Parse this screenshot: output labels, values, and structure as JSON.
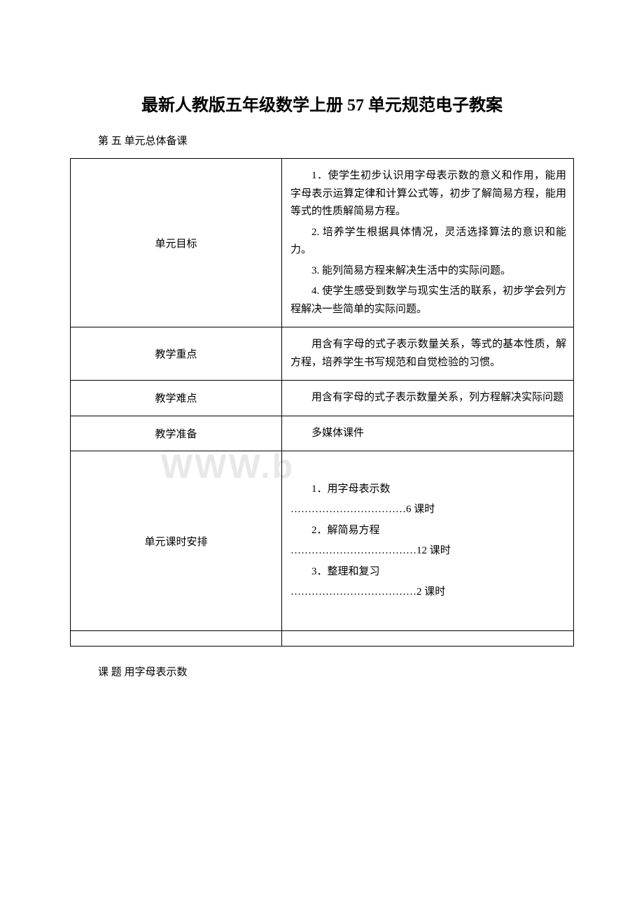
{
  "title": "最新人教版五年级数学上册 57 单元规范电子教案",
  "subtitle": "第 五  单元总体备课",
  "watermark": "WWW.b",
  "table": {
    "rows": [
      {
        "label": "单元目标",
        "items": [
          "1．使学生初步认识用字母表示数的意义和作用，能用字母表示运算定律和计算公式等，初步了解简易方程，能用等式的性质解简易方程。",
          "2. 培养学生根据具体情况，灵活选择算法的意识和能力。",
          "3. 能列简易方程来解决生活中的实际问题。",
          "4. 使学生感受到数学与现实生活的联系，初步学会列方程解决一些简单的实际问题。"
        ]
      },
      {
        "label": "教学重点",
        "content": "用含有字母的式子表示数量关系，等式的基本性质，解方程，培养学生书写规范和自觉检验的习惯。"
      },
      {
        "label": "教学难点",
        "content": "用含有字母的式子表示数量关系，列方程解决实际问题"
      },
      {
        "label": "教学准备",
        "content": "多媒体课件"
      },
      {
        "label": "单元课时安排",
        "schedule": [
          {
            "name": "1．用字母表示数",
            "dots": "……………………………",
            "hours": "6 课时"
          },
          {
            "name": "2．解简易方程",
            "dots": "………………………………",
            "hours": "12 课时"
          },
          {
            "name": "3．整理和复习",
            "dots": "………………………………",
            "hours": "2 课时"
          }
        ]
      }
    ]
  },
  "footer": "课 题 用字母表示数"
}
